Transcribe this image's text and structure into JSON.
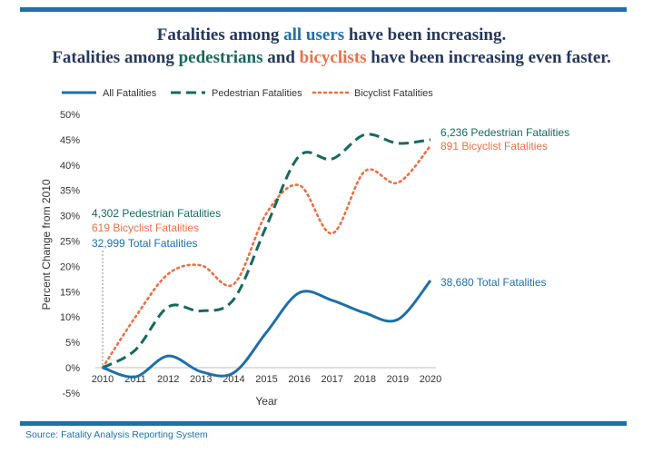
{
  "header": {
    "line1": {
      "pre": "Fatalities among ",
      "highlight": "all users",
      "post": " have been increasing."
    },
    "line2": {
      "pre": "Fatalities among ",
      "ped": "pedestrians",
      "mid": " and ",
      "bike": "bicyclists",
      "post": " have been increasing even faster."
    }
  },
  "footer": {
    "source": "Source: Fatality Analysis Reporting System"
  },
  "annotations": {
    "start_ped": "4,302 Pedestrian Fatalities",
    "start_bike": "619 Bicyclist Fatalities",
    "start_total": "32,999 Total Fatalities",
    "end_ped": "6,236 Pedestrian Fatalities",
    "end_bike": "891 Bicyclist Fatalities",
    "end_total": "38,680 Total Fatalities"
  },
  "colors": {
    "total": "#1f6fa8",
    "pedestrian": "#17695c",
    "bicyclist": "#e8714a",
    "rule": "#1f6fa8",
    "title": "#26385b"
  },
  "chart_data": {
    "type": "line",
    "x": [
      2010,
      2011,
      2012,
      2013,
      2014,
      2015,
      2016,
      2017,
      2018,
      2019,
      2020
    ],
    "xlabel": "Year",
    "ylabel": "Percent Change from 2010",
    "ylim": [
      -5,
      50
    ],
    "yticks": [
      -5,
      0,
      5,
      10,
      15,
      20,
      25,
      30,
      35,
      40,
      45,
      50
    ],
    "yticklabels": [
      "-5%",
      "0%",
      "5%",
      "10%",
      "15%",
      "20%",
      "25%",
      "30%",
      "35%",
      "40%",
      "45%",
      "50%"
    ],
    "grid": false,
    "legend": "top",
    "series": [
      {
        "name": "All Fatalities",
        "style": "solid",
        "values": [
          0,
          -1.8,
          2.3,
          -0.8,
          -1.0,
          7.0,
          14.8,
          13.3,
          10.8,
          9.5,
          17.2
        ]
      },
      {
        "name": "Pedestrian Fatalities",
        "style": "dashed",
        "values": [
          0,
          3.5,
          12.0,
          11.2,
          13.5,
          28.0,
          41.8,
          41.2,
          46.0,
          44.3,
          45.0
        ]
      },
      {
        "name": "Bicyclist Fatalities",
        "style": "dotted",
        "values": [
          0,
          10.0,
          18.5,
          20.2,
          16.5,
          30.5,
          36.0,
          26.5,
          38.8,
          36.5,
          43.8
        ]
      }
    ]
  }
}
